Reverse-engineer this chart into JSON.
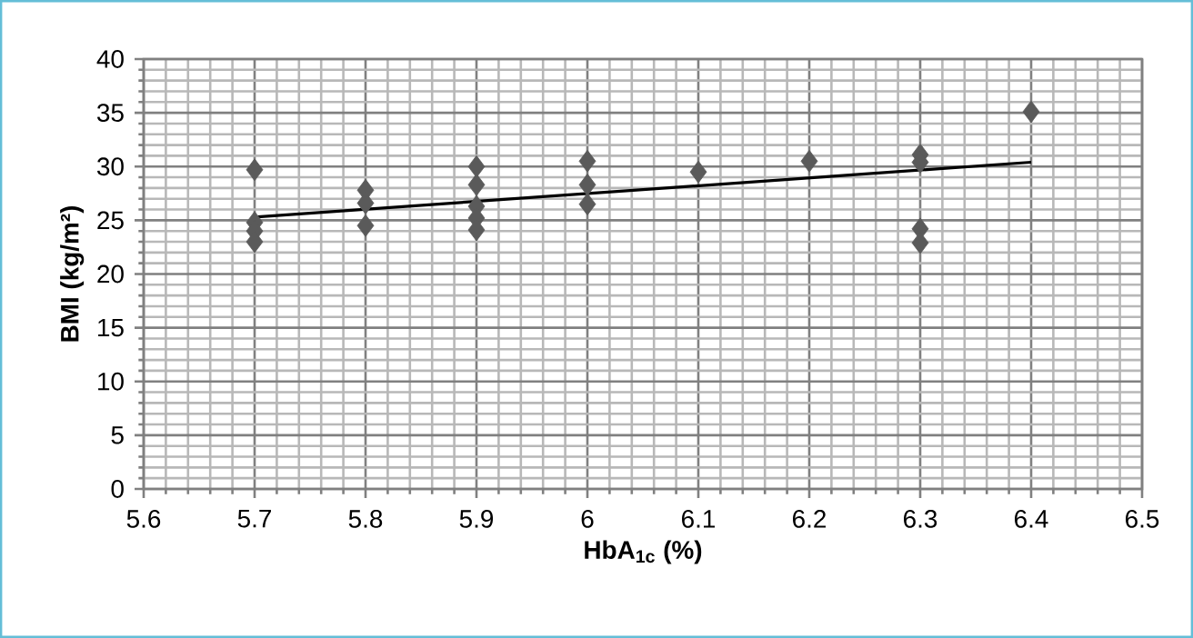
{
  "chart_data": {
    "type": "scatter",
    "xlabel": "HbA$_{1c}$ (%)",
    "ylabel": "BMI (kg/m²)",
    "xlim": [
      5.6,
      6.5
    ],
    "ylim": [
      0,
      40
    ],
    "xticks": [
      5.6,
      5.7,
      5.8,
      5.9,
      6,
      6.1,
      6.2,
      6.3,
      6.4,
      6.5
    ],
    "yticks": [
      0,
      5,
      10,
      15,
      20,
      25,
      30,
      35,
      40
    ],
    "grid": true,
    "marker": "diamond",
    "series": [
      {
        "color": "#5a5a5a",
        "x": [
          5.7,
          5.7,
          5.7,
          5.7,
          5.8,
          5.8,
          5.8,
          5.9,
          5.9,
          5.9,
          5.9,
          5.9,
          6.0,
          6.0,
          6.0,
          6.1,
          6.2,
          6.3,
          6.3,
          6.3,
          6.3,
          6.4
        ],
        "values": [
          29.7,
          24.8,
          24.0,
          23.0,
          27.8,
          26.6,
          24.5,
          30.0,
          28.3,
          26.3,
          25.2,
          24.1,
          30.5,
          28.3,
          26.5,
          29.5,
          30.5,
          31.1,
          30.4,
          24.2,
          22.9,
          35.1
        ]
      },
      {
        "type": "line",
        "color": "#000000",
        "marker": "none",
        "x": [
          5.7,
          6.4
        ],
        "values": [
          25.3,
          30.4
        ]
      }
    ]
  }
}
